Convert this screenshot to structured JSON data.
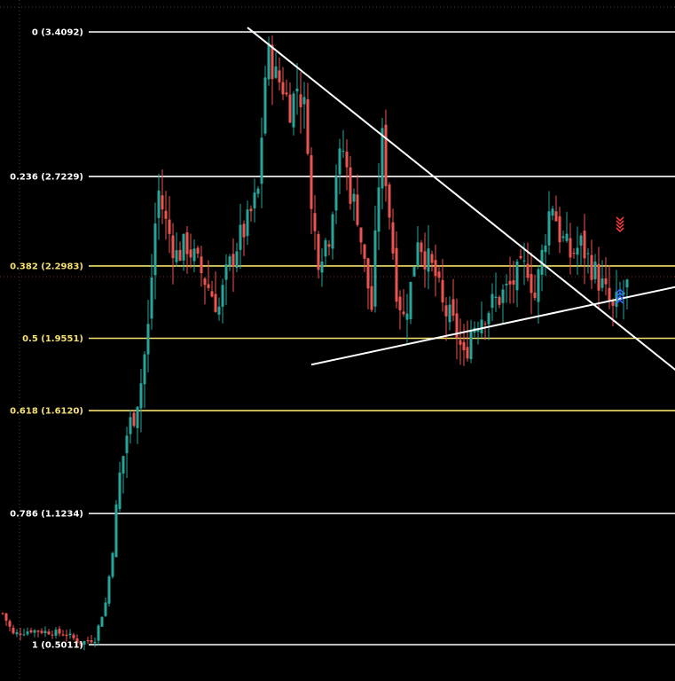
{
  "chart_data": {
    "type": "candlestick",
    "title": "",
    "xlabel": "",
    "ylabel": "",
    "ylim": [
      0.3,
      3.5
    ],
    "grid": false,
    "legend": "none",
    "colors": {
      "background": "#000000",
      "up": "#26a69a",
      "down": "#ef5350",
      "fib_white": "#ffffff",
      "fib_yellow": "#f5e06e",
      "trendline": "#ffffff",
      "crosshair": "#7a2323",
      "sell_arrow": "#ff3b3b",
      "buy_arrow": "#2e6bff"
    },
    "fib_levels": [
      {
        "ratio": "0",
        "price": "3.4092",
        "value": 3.4092,
        "label": "0 (3.4092)",
        "color": "#ffffff"
      },
      {
        "ratio": "0.236",
        "price": "2.7229",
        "value": 2.7229,
        "label": "0.236 (2.7229)",
        "color": "#ffffff"
      },
      {
        "ratio": "0.382",
        "price": "2.2983",
        "value": 2.2983,
        "label": "0.382 (2.2983)",
        "color": "#f5e06e"
      },
      {
        "ratio": "0.5",
        "price": "1.9551",
        "value": 1.9551,
        "label": "0.5 (1.9551)",
        "color": "#f5e06e"
      },
      {
        "ratio": "0.618",
        "price": "1.6120",
        "value": 1.612,
        "label": "0.618 (1.6120)",
        "color": "#f5e06e"
      },
      {
        "ratio": "0.786",
        "price": "1.1234",
        "value": 1.1234,
        "label": "0.786 (1.1234)",
        "color": "#ffffff"
      },
      {
        "ratio": "1",
        "price": "0.5011",
        "value": 0.5011,
        "label": "1 (0.5011)",
        "color": "#ffffff"
      }
    ],
    "trendlines": [
      {
        "name": "descending-resistance",
        "start": {
          "bar": 69,
          "price": 3.43
        },
        "end": {
          "bar": 190,
          "price": 1.8
        }
      },
      {
        "name": "ascending-support",
        "start": {
          "bar": 87,
          "price": 1.83
        },
        "end": {
          "bar": 190,
          "price": 2.2
        }
      }
    ],
    "waypoints": [
      [
        0,
        0.65
      ],
      [
        3,
        0.55
      ],
      [
        8,
        0.57
      ],
      [
        14,
        0.56
      ],
      [
        18,
        0.55
      ],
      [
        22,
        0.51
      ],
      [
        26,
        0.53
      ],
      [
        29,
        0.7
      ],
      [
        31,
        0.95
      ],
      [
        33,
        1.3
      ],
      [
        35,
        1.5
      ],
      [
        37,
        1.6
      ],
      [
        39,
        1.75
      ],
      [
        41,
        2.0
      ],
      [
        43,
        2.5
      ],
      [
        44,
        2.65
      ],
      [
        46,
        2.5
      ],
      [
        49,
        2.35
      ],
      [
        52,
        2.4
      ],
      [
        55,
        2.3
      ],
      [
        58,
        2.2
      ],
      [
        61,
        2.1
      ],
      [
        63,
        2.25
      ],
      [
        66,
        2.4
      ],
      [
        69,
        2.5
      ],
      [
        72,
        2.65
      ],
      [
        74,
        3.2
      ],
      [
        75,
        3.3
      ],
      [
        77,
        3.2
      ],
      [
        79,
        3.15
      ],
      [
        81,
        3.05
      ],
      [
        83,
        3.15
      ],
      [
        85,
        3.05
      ],
      [
        86,
        2.9
      ],
      [
        87,
        2.55
      ],
      [
        89,
        2.35
      ],
      [
        92,
        2.45
      ],
      [
        94,
        2.75
      ],
      [
        96,
        2.85
      ],
      [
        98,
        2.65
      ],
      [
        100,
        2.55
      ],
      [
        102,
        2.3
      ],
      [
        104,
        2.1
      ],
      [
        106,
        2.7
      ],
      [
        107,
        2.9
      ],
      [
        109,
        2.55
      ],
      [
        111,
        2.2
      ],
      [
        113,
        2.05
      ],
      [
        115,
        2.2
      ],
      [
        117,
        2.45
      ],
      [
        119,
        2.35
      ],
      [
        122,
        2.25
      ],
      [
        124,
        2.1
      ],
      [
        126,
        2.05
      ],
      [
        128,
        1.98
      ],
      [
        130,
        1.85
      ],
      [
        132,
        2.0
      ],
      [
        134,
        2.05
      ],
      [
        137,
        2.1
      ],
      [
        140,
        2.15
      ],
      [
        143,
        2.2
      ],
      [
        145,
        2.25
      ],
      [
        148,
        2.3
      ],
      [
        150,
        2.15
      ],
      [
        152,
        2.35
      ],
      [
        154,
        2.55
      ],
      [
        155,
        2.6
      ],
      [
        157,
        2.45
      ],
      [
        160,
        2.35
      ],
      [
        163,
        2.4
      ],
      [
        166,
        2.3
      ],
      [
        169,
        2.2
      ],
      [
        172,
        2.08
      ],
      [
        174,
        2.15
      ],
      [
        176,
        2.2
      ]
    ],
    "bars": 177,
    "signals": [
      {
        "type": "sell",
        "bar": 174,
        "price": 2.53
      },
      {
        "type": "buy",
        "bar": 174,
        "price": 2.12
      }
    ]
  }
}
